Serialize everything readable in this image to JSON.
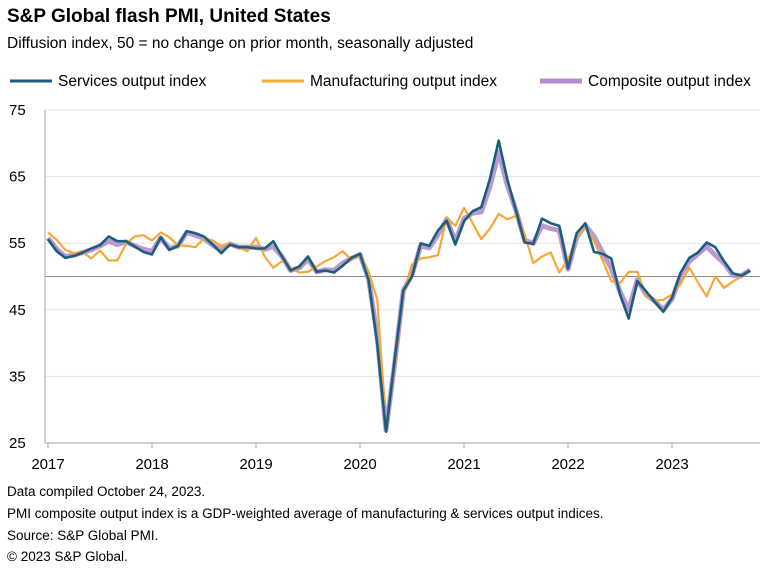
{
  "chart_data": {
    "type": "line",
    "title": "S&P Global flash PMI, United States",
    "subtitle": "Diffusion index, 50 = no change on prior month, seasonally adjusted",
    "x_start": "2017-01",
    "x_frequency": "monthly",
    "x_tick_labels": [
      "2017",
      "2018",
      "2019",
      "2020",
      "2021",
      "2022",
      "2023"
    ],
    "y_tick_labels": [
      "25",
      "35",
      "45",
      "55",
      "65",
      "75"
    ],
    "ylim": [
      25,
      75
    ],
    "reference_line": 50,
    "grid": true,
    "legend": "top",
    "series": [
      {
        "name": "Services output index",
        "color": "#1b5f7e",
        "values": [
          55.6,
          53.8,
          52.8,
          53.1,
          53.6,
          54.2,
          54.7,
          56.0,
          55.3,
          55.3,
          54.5,
          53.7,
          53.3,
          55.9,
          54.0,
          54.6,
          56.8,
          56.5,
          56.0,
          54.8,
          53.5,
          54.8,
          54.4,
          54.4,
          54.2,
          54.2,
          55.3,
          53.0,
          50.9,
          51.5,
          53.0,
          50.7,
          50.9,
          50.6,
          51.6,
          52.8,
          53.4,
          49.4,
          39.8,
          26.7,
          37.5,
          47.9,
          50.0,
          55.0,
          54.6,
          56.9,
          58.4,
          54.8,
          58.3,
          59.8,
          60.4,
          64.7,
          70.4,
          64.6,
          59.9,
          55.1,
          54.9,
          58.7,
          58.0,
          57.6,
          51.2,
          56.5,
          58.0,
          53.7,
          53.4,
          52.7,
          47.3,
          43.7,
          49.3,
          47.8,
          46.2,
          44.7,
          46.8,
          50.6,
          52.8,
          53.6,
          55.1,
          54.4,
          52.3,
          50.5,
          50.1,
          50.9
        ]
      },
      {
        "name": "Manufacturing output index",
        "color": "#f5a83a",
        "values": [
          56.6,
          55.5,
          54.0,
          53.5,
          53.7,
          52.7,
          53.9,
          52.4,
          52.4,
          54.9,
          56.0,
          56.2,
          55.4,
          56.6,
          55.9,
          54.7,
          54.6,
          54.4,
          55.7,
          55.4,
          54.6,
          55.0,
          54.4,
          53.8,
          55.8,
          53.0,
          51.3,
          52.3,
          51.3,
          50.6,
          50.7,
          51.5,
          52.3,
          52.9,
          53.8,
          52.5,
          53.3,
          50.7,
          46.5,
          27.4,
          36.6,
          47.4,
          51.8,
          52.7,
          52.9,
          53.2,
          58.9,
          57.6,
          60.3,
          58.0,
          55.6,
          57.2,
          59.4,
          58.6,
          59.1,
          56.3,
          52.0,
          53.0,
          53.6,
          50.6,
          52.5,
          56.0,
          57.5,
          55.3,
          52.4,
          49.3,
          49.0,
          50.7,
          50.7,
          47.1,
          46.4,
          46.5,
          47.3,
          48.9,
          51.3,
          49.1,
          47.0,
          50.0,
          48.3,
          49.2,
          50.0,
          50.9
        ]
      },
      {
        "name": "Composite output index",
        "color": "#b48dcb",
        "values": [
          55.8,
          54.1,
          53.0,
          53.2,
          53.6,
          54.0,
          54.6,
          55.3,
          54.8,
          55.2,
          54.6,
          54.1,
          53.8,
          55.8,
          54.2,
          54.6,
          56.6,
          56.2,
          55.7,
          54.7,
          53.9,
          54.9,
          54.4,
          54.4,
          54.4,
          54.1,
          54.5,
          53.0,
          50.9,
          51.3,
          52.6,
          50.7,
          51.0,
          50.9,
          52.0,
          52.7,
          53.3,
          49.6,
          40.9,
          27.0,
          37.0,
          47.9,
          50.3,
          54.6,
          54.3,
          56.3,
          58.6,
          55.3,
          58.7,
          59.5,
          59.7,
          63.5,
          68.7,
          63.7,
          59.9,
          55.4,
          55.0,
          57.6,
          57.2,
          56.9,
          51.1,
          55.9,
          57.7,
          56.0,
          53.6,
          51.2,
          47.7,
          45.0,
          49.5,
          47.3,
          46.3,
          45.0,
          46.6,
          50.2,
          52.3,
          53.4,
          54.5,
          53.2,
          52.0,
          50.2,
          50.1,
          51.0
        ]
      }
    ]
  },
  "footer": [
    "Data compiled October 24, 2023.",
    "PMI composite output index is a GDP-weighted average of manufacturing & services output indices.",
    "Source: S&P Global PMI.",
    "© 2023 S&P Global."
  ]
}
